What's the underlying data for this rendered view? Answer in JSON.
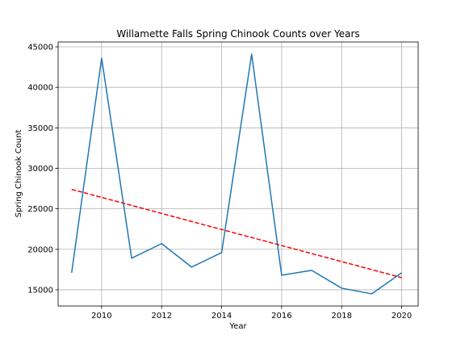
{
  "chart_data": {
    "type": "line",
    "title": "Willamette Falls Spring Chinook Counts over Years",
    "xlabel": "Year",
    "ylabel": "Spring Chinook Count",
    "xlim": [
      2008.55,
      2020.55
    ],
    "ylim": [
      13000,
      45600
    ],
    "x_ticks": [
      2010,
      2012,
      2014,
      2016,
      2018,
      2020
    ],
    "y_ticks": [
      15000,
      20000,
      25000,
      30000,
      35000,
      40000,
      45000
    ],
    "grid": true,
    "series": [
      {
        "style": "solid",
        "color": "#1f77b4",
        "x": [
          2009,
          2010,
          2011,
          2012,
          2013,
          2014,
          2015,
          2016,
          2017,
          2018,
          2019,
          2020
        ],
        "y": [
          17100,
          43600,
          18900,
          20700,
          17800,
          19600,
          44100,
          16800,
          17400,
          15200,
          14500,
          17100
        ]
      },
      {
        "style": "dashed",
        "color": "#ff0000",
        "x": [
          2009,
          2020
        ],
        "y": [
          27400,
          16500
        ]
      }
    ]
  }
}
